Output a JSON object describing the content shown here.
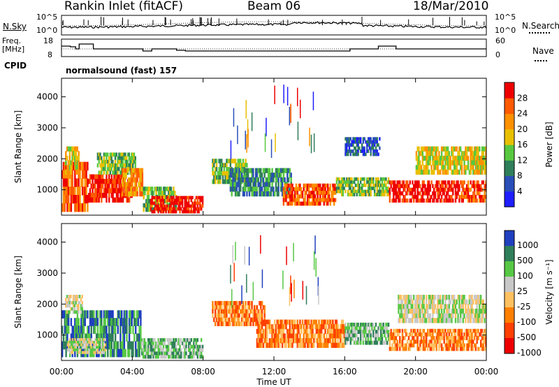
{
  "header": {
    "station": "Rankin Inlet (fitACF)",
    "beam": "Beam 06",
    "date": "18/Mar/2010"
  },
  "panels": {
    "nsky": {
      "label": "N.Sky",
      "ticks": [
        "10^5",
        "10^0"
      ],
      "right_label": "N.Search",
      "right_ticks": [
        "10^5",
        "10^0"
      ]
    },
    "freq": {
      "label_line1": "Freq.",
      "label_line2": "[MHz]",
      "ticks": [
        "18",
        "8"
      ],
      "right_label": "Nave",
      "right_ticks": [
        "60",
        "0"
      ]
    },
    "cpid": {
      "label": "CPID",
      "value": "normalsound (fast) 157"
    }
  },
  "colors": {
    "power": [
      "#1e1eff",
      "#2a4fb8",
      "#2f7f5a",
      "#58c840",
      "#e8c000",
      "#ff9000",
      "#ff5a00",
      "#ee0000"
    ],
    "velocity": [
      "#2040c0",
      "#2f7f5a",
      "#57c845",
      "#c8c8c8",
      "#ffc060",
      "#ff8000",
      "#ff4000",
      "#ee0000"
    ]
  },
  "chart_data": [
    {
      "type": "heatmap",
      "name": "power",
      "ylabel": "Slant Range [km]",
      "xlabel": "Time UT",
      "x_ticks": [
        "00:00",
        "04:00",
        "08:00",
        "12:00",
        "16:00",
        "20:00",
        "00:00"
      ],
      "y_ticks": [
        1000,
        2000,
        3000,
        4000
      ],
      "ylim": [
        180,
        4600
      ],
      "colorbar": {
        "label": "Power [dB]",
        "ticks": [
          "4",
          "8",
          "12",
          "16",
          "20",
          "24",
          "28"
        ]
      },
      "regions": [
        {
          "t": [
            0.0,
            1.5
          ],
          "r": [
            300,
            1900
          ],
          "level": 6
        },
        {
          "t": [
            0.2,
            1.0
          ],
          "r": [
            1500,
            2400
          ],
          "level": 4
        },
        {
          "t": [
            1.5,
            4.0
          ],
          "r": [
            600,
            1500
          ],
          "level": 7
        },
        {
          "t": [
            2.0,
            4.2
          ],
          "r": [
            1500,
            2200
          ],
          "level": 3
        },
        {
          "t": [
            3.4,
            4.6
          ],
          "r": [
            800,
            1700
          ],
          "level": 5
        },
        {
          "t": [
            4.6,
            6.5
          ],
          "r": [
            300,
            1100
          ],
          "level": 3
        },
        {
          "t": [
            5.0,
            8.0
          ],
          "r": [
            250,
            800
          ],
          "level": 7
        },
        {
          "t": [
            8.5,
            10.5
          ],
          "r": [
            1200,
            2000
          ],
          "level": 3
        },
        {
          "t": [
            9.5,
            13.0
          ],
          "r": [
            800,
            1700
          ],
          "level": 2
        },
        {
          "t": [
            12.5,
            15.5
          ],
          "r": [
            500,
            1200
          ],
          "level": 6
        },
        {
          "t": [
            15.5,
            18.5
          ],
          "r": [
            800,
            1400
          ],
          "level": 3
        },
        {
          "t": [
            16.0,
            18.0
          ],
          "r": [
            2100,
            2700
          ],
          "level": 1
        },
        {
          "t": [
            18.5,
            22.5
          ],
          "r": [
            600,
            1300
          ],
          "level": 7
        },
        {
          "t": [
            22.5,
            24.0
          ],
          "r": [
            600,
            1300
          ],
          "level": 6
        },
        {
          "t": [
            20.0,
            24.0
          ],
          "r": [
            1500,
            2400
          ],
          "level": 4
        }
      ]
    },
    {
      "type": "heatmap",
      "name": "velocity",
      "ylabel": "Slant Range [km]",
      "xlabel": "Time UT",
      "x_ticks": [
        "00:00",
        "04:00",
        "08:00",
        "12:00",
        "16:00",
        "20:00",
        "00:00"
      ],
      "y_ticks": [
        1000,
        2000,
        3000,
        4000
      ],
      "ylim": [
        180,
        4600
      ],
      "colorbar": {
        "label": "Velocity [m s⁻¹]",
        "ticks": [
          "1000",
          "500",
          "100",
          "25",
          "-25",
          "-100",
          "-500",
          "-1000"
        ]
      },
      "regions": [
        {
          "t": [
            0.0,
            4.5
          ],
          "r": [
            300,
            1800
          ],
          "level": 1
        },
        {
          "t": [
            0.3,
            2.5
          ],
          "r": [
            400,
            900
          ],
          "level": 3
        },
        {
          "t": [
            0.2,
            1.2
          ],
          "r": [
            1700,
            2300
          ],
          "level": 3
        },
        {
          "t": [
            4.5,
            8.0
          ],
          "r": [
            250,
            900
          ],
          "level": 2
        },
        {
          "t": [
            8.5,
            11.5
          ],
          "r": [
            1300,
            2100
          ],
          "level": 5
        },
        {
          "t": [
            11.0,
            16.0
          ],
          "r": [
            600,
            1500
          ],
          "level": 5
        },
        {
          "t": [
            16.0,
            18.5
          ],
          "r": [
            700,
            1400
          ],
          "level": 2
        },
        {
          "t": [
            18.5,
            24.0
          ],
          "r": [
            500,
            1200
          ],
          "level": 5
        },
        {
          "t": [
            19.0,
            24.0
          ],
          "r": [
            1400,
            2300
          ],
          "level": 3
        }
      ]
    }
  ]
}
